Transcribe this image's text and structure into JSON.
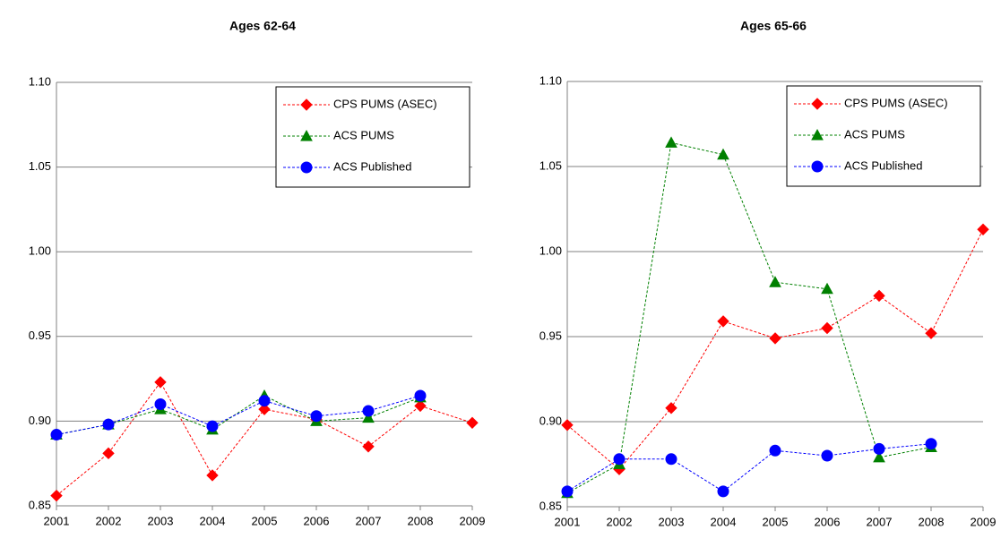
{
  "chart_data": [
    {
      "type": "line",
      "title": "Ages 62-64",
      "categories": [
        "2001",
        "2002",
        "2003",
        "2004",
        "2005",
        "2006",
        "2007",
        "2008",
        "2009"
      ],
      "series": [
        {
          "name": "CPS PUMS (ASEC)",
          "color": "#ff0000",
          "marker": "diamond",
          "values": [
            0.856,
            0.881,
            0.923,
            0.868,
            0.907,
            0.901,
            0.885,
            0.909,
            0.899
          ]
        },
        {
          "name": "ACS PUMS",
          "color": "#008000",
          "marker": "triangle",
          "values": [
            0.892,
            0.898,
            0.907,
            0.895,
            0.915,
            0.9,
            0.902,
            0.914,
            null
          ]
        },
        {
          "name": "ACS Published",
          "color": "#0000ff",
          "marker": "circle",
          "values": [
            0.892,
            0.898,
            0.91,
            0.897,
            0.912,
            0.903,
            0.906,
            0.915,
            null
          ]
        }
      ],
      "ylim": [
        0.85,
        1.1
      ],
      "yticks": [
        0.85,
        {
          "value": 0.9,
          "label": "0.90"
        },
        0.95,
        {
          "value": 1.0,
          "label": "1.00"
        },
        1.05,
        {
          "value": 1.1,
          "label": "1.10"
        }
      ],
      "grid": true,
      "linestyle": "dashed",
      "legend": "upper right"
    },
    {
      "type": "line",
      "title": "Ages 65-66",
      "categories": [
        "2001",
        "2002",
        "2003",
        "2004",
        "2005",
        "2006",
        "2007",
        "2008",
        "2009"
      ],
      "series": [
        {
          "name": "CPS PUMS (ASEC)",
          "color": "#ff0000",
          "marker": "diamond",
          "values": [
            0.898,
            0.872,
            0.908,
            0.959,
            0.949,
            0.955,
            0.974,
            0.952,
            1.013
          ]
        },
        {
          "name": "ACS PUMS",
          "color": "#008000",
          "marker": "triangle",
          "values": [
            0.858,
            0.875,
            1.064,
            1.057,
            0.982,
            0.978,
            0.879,
            0.885,
            null
          ]
        },
        {
          "name": "ACS Published",
          "color": "#0000ff",
          "marker": "circle",
          "values": [
            0.859,
            0.878,
            0.878,
            0.859,
            0.883,
            0.88,
            0.884,
            0.887,
            null
          ]
        }
      ],
      "ylim": [
        0.85,
        1.1
      ],
      "yticks": [
        0.85,
        {
          "value": 0.9,
          "label": "0.90"
        },
        0.95,
        {
          "value": 1.0,
          "label": "1.00"
        },
        1.05,
        {
          "value": 1.1,
          "label": "1.10"
        }
      ],
      "grid": true,
      "linestyle": "dashed",
      "legend": "upper right"
    }
  ]
}
